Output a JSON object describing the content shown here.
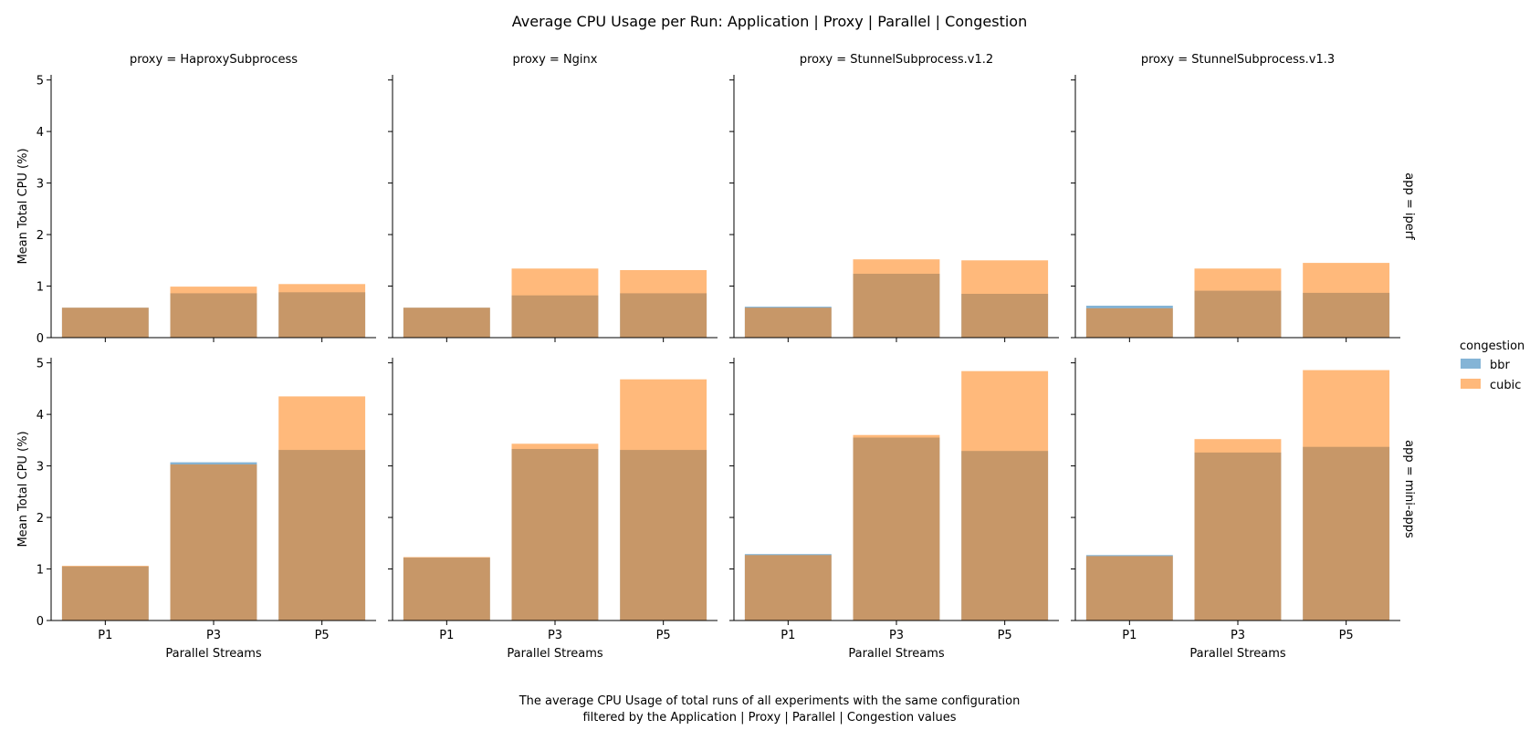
{
  "chart_data": {
    "type": "bar",
    "title": "Average CPU Usage per Run: Application | Proxy | Parallel | Congestion",
    "caption": [
      "The average CPU Usage of total runs of all experiments with the same configuration",
      "filtered by the Application | Proxy | Parallel | Congestion values"
    ],
    "xlabel": "Parallel Streams",
    "ylabel": "Mean Total CPU (%)",
    "categories": [
      "P1",
      "P3",
      "P5"
    ],
    "ylim": [
      0,
      5.1
    ],
    "yticks": [
      "0",
      "1",
      "2",
      "3",
      "4",
      "5"
    ],
    "grid": false,
    "col_var": "proxy",
    "row_var": "app",
    "columns": [
      "proxy = HaproxySubprocess",
      "proxy = Nginx",
      "proxy = StunnelSubprocess.v1.2",
      "proxy = StunnelSubprocess.v1.3"
    ],
    "rows": [
      "app = iperf",
      "app = mini-apps"
    ],
    "legend": {
      "title": "congestion",
      "placement": "right",
      "entries": [
        {
          "name": "bbr",
          "color": "#1f77b4"
        },
        {
          "name": "cubic",
          "color": "#ff7f0e"
        }
      ]
    },
    "panels": [
      {
        "row": "app = iperf",
        "col": "proxy = HaproxySubprocess",
        "series": [
          {
            "name": "bbr",
            "values": [
              0.58,
              0.86,
              0.88
            ]
          },
          {
            "name": "cubic",
            "values": [
              0.58,
              0.99,
              1.04
            ]
          }
        ]
      },
      {
        "row": "app = iperf",
        "col": "proxy = Nginx",
        "series": [
          {
            "name": "bbr",
            "values": [
              0.58,
              0.82,
              0.86
            ]
          },
          {
            "name": "cubic",
            "values": [
              0.58,
              1.34,
              1.31
            ]
          }
        ]
      },
      {
        "row": "app = iperf",
        "col": "proxy = StunnelSubprocess.v1.2",
        "series": [
          {
            "name": "bbr",
            "values": [
              0.6,
              1.24,
              0.85
            ]
          },
          {
            "name": "cubic",
            "values": [
              0.58,
              1.52,
              1.5
            ]
          }
        ]
      },
      {
        "row": "app = iperf",
        "col": "proxy = StunnelSubprocess.v1.3",
        "series": [
          {
            "name": "bbr",
            "values": [
              0.62,
              0.91,
              0.87
            ]
          },
          {
            "name": "cubic",
            "values": [
              0.57,
              1.34,
              1.45
            ]
          }
        ]
      },
      {
        "row": "app = mini-apps",
        "col": "proxy = HaproxySubprocess",
        "series": [
          {
            "name": "bbr",
            "values": [
              1.05,
              3.07,
              3.31
            ]
          },
          {
            "name": "cubic",
            "values": [
              1.06,
              3.03,
              4.35
            ]
          }
        ]
      },
      {
        "row": "app = mini-apps",
        "col": "proxy = Nginx",
        "series": [
          {
            "name": "bbr",
            "values": [
              1.22,
              3.33,
              3.31
            ]
          },
          {
            "name": "cubic",
            "values": [
              1.23,
              3.43,
              4.68
            ]
          }
        ]
      },
      {
        "row": "app = mini-apps",
        "col": "proxy = StunnelSubprocess.v1.2",
        "series": [
          {
            "name": "bbr",
            "values": [
              1.29,
              3.55,
              3.29
            ]
          },
          {
            "name": "cubic",
            "values": [
              1.27,
              3.6,
              4.84
            ]
          }
        ]
      },
      {
        "row": "app = mini-apps",
        "col": "proxy = StunnelSubprocess.v1.3",
        "series": [
          {
            "name": "bbr",
            "values": [
              1.27,
              3.26,
              3.37
            ]
          },
          {
            "name": "cubic",
            "values": [
              1.25,
              3.52,
              4.86
            ]
          }
        ]
      }
    ]
  }
}
